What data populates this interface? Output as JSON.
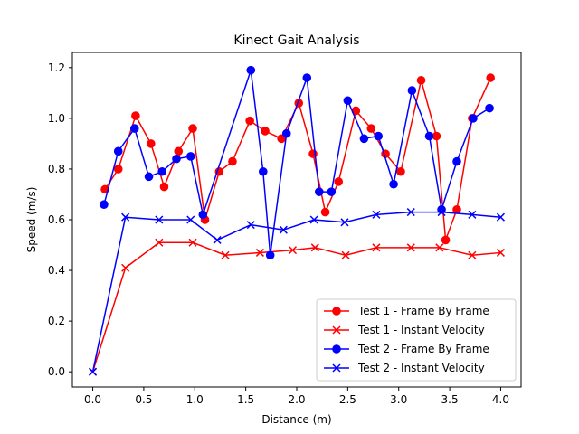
{
  "chart_data": {
    "type": "line",
    "title": "Kinect Gait Analysis",
    "xlabel": "Distance (m)",
    "ylabel": "Speed (m/s)",
    "xlim": [
      -0.2,
      4.2
    ],
    "ylim": [
      -0.06,
      1.26
    ],
    "xticks": [
      "0.0",
      "0.5",
      "1.0",
      "1.5",
      "2.0",
      "2.5",
      "3.0",
      "3.5",
      "4.0"
    ],
    "yticks": [
      "0.0",
      "0.2",
      "0.4",
      "0.6",
      "0.8",
      "1.0",
      "1.2"
    ],
    "grid": false,
    "legend_position": "lower right",
    "series": [
      {
        "name": "Test 1 - Frame By Frame",
        "color": "#ff0000",
        "marker": "circle",
        "x": [
          0.12,
          0.25,
          0.42,
          0.57,
          0.7,
          0.84,
          0.98,
          1.1,
          1.24,
          1.37,
          1.54,
          1.69,
          1.85,
          2.02,
          2.16,
          2.28,
          2.41,
          2.58,
          2.73,
          2.87,
          3.02,
          3.22,
          3.37,
          3.46,
          3.57,
          3.72,
          3.9
        ],
        "y": [
          0.72,
          0.8,
          1.01,
          0.9,
          0.73,
          0.87,
          0.96,
          0.6,
          0.79,
          0.83,
          0.99,
          0.95,
          0.92,
          1.06,
          0.86,
          0.63,
          0.75,
          1.03,
          0.96,
          0.86,
          0.79,
          1.15,
          0.93,
          0.52,
          0.64,
          1.0,
          1.16
        ]
      },
      {
        "name": "Test 1 - Instant Velocity",
        "color": "#ff0000",
        "marker": "x",
        "x": [
          0.0,
          0.32,
          0.65,
          0.98,
          1.3,
          1.64,
          1.96,
          2.18,
          2.48,
          2.78,
          3.12,
          3.4,
          3.72,
          4.0
        ],
        "y": [
          0.0,
          0.41,
          0.51,
          0.51,
          0.46,
          0.47,
          0.48,
          0.49,
          0.46,
          0.49,
          0.49,
          0.49,
          0.46,
          0.47
        ]
      },
      {
        "name": "Test 2 - Frame By Frame",
        "color": "#0000ff",
        "marker": "circle",
        "x": [
          0.11,
          0.25,
          0.41,
          0.55,
          0.68,
          0.82,
          0.96,
          1.08,
          1.55,
          1.67,
          1.74,
          1.9,
          2.1,
          2.22,
          2.34,
          2.5,
          2.66,
          2.8,
          2.95,
          3.13,
          3.3,
          3.42,
          3.57,
          3.73,
          3.89
        ],
        "y": [
          0.66,
          0.87,
          0.96,
          0.77,
          0.79,
          0.84,
          0.85,
          0.62,
          1.19,
          0.79,
          0.46,
          0.94,
          1.16,
          0.71,
          0.71,
          1.07,
          0.92,
          0.93,
          0.74,
          1.11,
          0.93,
          0.64,
          0.83,
          1.0,
          1.04
        ]
      },
      {
        "name": "Test 2 - Instant Velocity",
        "color": "#0000ff",
        "marker": "x",
        "x": [
          0.0,
          0.32,
          0.65,
          0.96,
          1.22,
          1.55,
          1.87,
          2.17,
          2.47,
          2.78,
          3.12,
          3.42,
          3.72,
          4.0
        ],
        "y": [
          0.0,
          0.61,
          0.6,
          0.6,
          0.52,
          0.58,
          0.56,
          0.6,
          0.59,
          0.62,
          0.63,
          0.63,
          0.62,
          0.61
        ]
      }
    ]
  }
}
